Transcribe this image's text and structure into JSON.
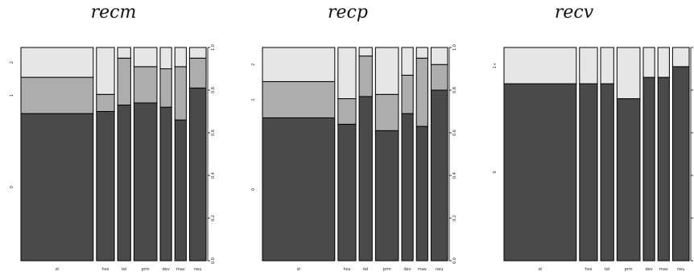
{
  "colors": {
    "level_dark": "#4a4a4a",
    "level_mid": "#adadad",
    "level_light": "#e6e6e6",
    "stroke": "#000000"
  },
  "chart_data": [
    {
      "type": "spineplot",
      "title": "recm",
      "categories": [
        "st",
        "hos",
        "tel",
        "prm",
        "dev",
        "mav",
        "neu"
      ],
      "levels": [
        "0",
        "1",
        "2"
      ],
      "ylim": [
        0,
        1
      ],
      "yticks_right": [
        "0.0",
        "0.2",
        "0.4",
        "0.6",
        "0.8",
        "1.0"
      ],
      "category_width_share": [
        0.436,
        0.108,
        0.079,
        0.139,
        0.069,
        0.069,
        0.1
      ],
      "series": [
        {
          "name": "0",
          "values": [
            0.69,
            0.7,
            0.73,
            0.74,
            0.72,
            0.66,
            0.81
          ]
        },
        {
          "name": "1",
          "values": [
            0.17,
            0.08,
            0.22,
            0.17,
            0.18,
            0.25,
            0.14
          ]
        },
        {
          "name": "2",
          "values": [
            0.14,
            0.22,
            0.05,
            0.09,
            0.1,
            0.09,
            0.05
          ]
        }
      ]
    },
    {
      "type": "spineplot",
      "title": "recp",
      "categories": [
        "st",
        "hos",
        "tel",
        "prm",
        "dev",
        "mav",
        "neu"
      ],
      "levels": [
        "0",
        "1",
        "2"
      ],
      "ylim": [
        0,
        1
      ],
      "yticks_right": [
        "0.0",
        "0.2",
        "0.4",
        "0.6",
        "0.8",
        "1.0"
      ],
      "category_width_share": [
        0.436,
        0.108,
        0.079,
        0.139,
        0.069,
        0.069,
        0.1
      ],
      "series": [
        {
          "name": "0",
          "values": [
            0.67,
            0.64,
            0.77,
            0.61,
            0.69,
            0.63,
            0.8
          ]
        },
        {
          "name": "1",
          "values": [
            0.17,
            0.12,
            0.19,
            0.17,
            0.18,
            0.32,
            0.12
          ]
        },
        {
          "name": "2",
          "values": [
            0.16,
            0.24,
            0.04,
            0.22,
            0.13,
            0.05,
            0.08
          ]
        }
      ]
    },
    {
      "type": "spineplot",
      "title": "recv",
      "categories": [
        "st",
        "hos",
        "tel",
        "prm",
        "dev",
        "mav",
        "neu"
      ],
      "levels": [
        "0",
        "1+"
      ],
      "ylim": [
        0,
        1
      ],
      "yticks_right": [
        "0.0",
        "0.2",
        "0.4",
        "0.6",
        "0.8",
        "1.0"
      ],
      "category_width_share": [
        0.436,
        0.108,
        0.079,
        0.139,
        0.069,
        0.069,
        0.1
      ],
      "series": [
        {
          "name": "0",
          "values": [
            0.83,
            0.83,
            0.83,
            0.76,
            0.86,
            0.86,
            0.91
          ]
        },
        {
          "name": "1+",
          "values": [
            0.17,
            0.17,
            0.17,
            0.24,
            0.14,
            0.14,
            0.09
          ]
        }
      ]
    }
  ]
}
